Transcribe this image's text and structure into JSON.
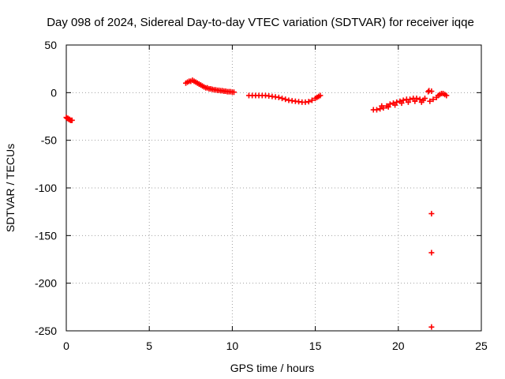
{
  "chart_data": {
    "type": "scatter",
    "title": "Day 098 of 2024, Sidereal Day-to-day VTEC variation (SDTVAR) for receiver iqqe",
    "xlabel": "GPS time / hours",
    "ylabel": "SDTVAR / TECUs",
    "xlim": [
      0,
      25
    ],
    "ylim": [
      -250,
      50
    ],
    "xticks": [
      0,
      5,
      10,
      15,
      20,
      25
    ],
    "yticks": [
      50,
      0,
      -50,
      -100,
      -150,
      -200,
      -250
    ],
    "grid": true,
    "marker": "+",
    "color": "#ff0000",
    "series": [
      {
        "name": "SDTVAR",
        "points": [
          [
            0.0,
            -26
          ],
          [
            0.05,
            -27
          ],
          [
            0.1,
            -27
          ],
          [
            0.15,
            -28
          ],
          [
            0.2,
            -28
          ],
          [
            0.25,
            -29
          ],
          [
            0.3,
            -29
          ],
          [
            0.35,
            -29
          ],
          [
            7.2,
            10
          ],
          [
            7.3,
            11
          ],
          [
            7.4,
            12
          ],
          [
            7.5,
            12
          ],
          [
            7.6,
            13
          ],
          [
            7.7,
            12
          ],
          [
            7.8,
            11
          ],
          [
            7.9,
            10
          ],
          [
            8.0,
            9
          ],
          [
            8.1,
            8
          ],
          [
            8.2,
            7
          ],
          [
            8.3,
            6
          ],
          [
            8.4,
            5
          ],
          [
            8.5,
            5
          ],
          [
            8.6,
            4
          ],
          [
            8.7,
            4
          ],
          [
            8.8,
            3.5
          ],
          [
            8.9,
            3
          ],
          [
            9.0,
            3
          ],
          [
            9.1,
            2.5
          ],
          [
            9.2,
            2.5
          ],
          [
            9.3,
            2
          ],
          [
            9.4,
            2
          ],
          [
            9.5,
            1.5
          ],
          [
            9.6,
            1.5
          ],
          [
            9.7,
            1
          ],
          [
            9.8,
            1
          ],
          [
            9.9,
            1
          ],
          [
            10.0,
            0.5
          ],
          [
            10.1,
            0.5
          ],
          [
            11.0,
            -3
          ],
          [
            11.2,
            -3
          ],
          [
            11.4,
            -3
          ],
          [
            11.6,
            -3
          ],
          [
            11.8,
            -3
          ],
          [
            12.0,
            -3
          ],
          [
            12.2,
            -3.5
          ],
          [
            12.4,
            -4
          ],
          [
            12.6,
            -4.5
          ],
          [
            12.8,
            -5
          ],
          [
            13.0,
            -6
          ],
          [
            13.2,
            -7
          ],
          [
            13.4,
            -8
          ],
          [
            13.6,
            -8.5
          ],
          [
            13.8,
            -9
          ],
          [
            14.0,
            -9.5
          ],
          [
            14.2,
            -10
          ],
          [
            14.4,
            -10
          ],
          [
            14.6,
            -9.5
          ],
          [
            14.8,
            -8
          ],
          [
            15.0,
            -6
          ],
          [
            15.1,
            -5
          ],
          [
            15.2,
            -4
          ],
          [
            15.3,
            -3
          ],
          [
            18.5,
            -18
          ],
          [
            18.7,
            -18
          ],
          [
            18.9,
            -17
          ],
          [
            19.1,
            -16
          ],
          [
            19.3,
            -14
          ],
          [
            19.5,
            -12
          ],
          [
            19.7,
            -11
          ],
          [
            19.9,
            -10
          ],
          [
            20.1,
            -9
          ],
          [
            20.3,
            -8
          ],
          [
            20.5,
            -7
          ],
          [
            20.7,
            -7
          ],
          [
            20.9,
            -6
          ],
          [
            21.1,
            -6
          ],
          [
            21.3,
            -7
          ],
          [
            21.5,
            -8
          ],
          [
            21.6,
            -6
          ],
          [
            21.8,
            1
          ],
          [
            21.85,
            2
          ],
          [
            22.0,
            1.5
          ],
          [
            22.1,
            -7
          ],
          [
            22.3,
            -5
          ],
          [
            22.4,
            -3
          ],
          [
            22.5,
            -2
          ],
          [
            22.6,
            -1
          ],
          [
            22.7,
            -1
          ],
          [
            22.8,
            -2
          ],
          [
            22.9,
            -3
          ],
          [
            19.0,
            -14
          ],
          [
            19.4,
            -15
          ],
          [
            19.8,
            -13
          ],
          [
            20.2,
            -11
          ],
          [
            20.6,
            -10
          ],
          [
            21.0,
            -9
          ],
          [
            21.4,
            -10
          ],
          [
            21.9,
            -9
          ],
          [
            22.0,
            -127
          ],
          [
            22.0,
            -168
          ],
          [
            22.0,
            -246
          ]
        ]
      }
    ]
  }
}
